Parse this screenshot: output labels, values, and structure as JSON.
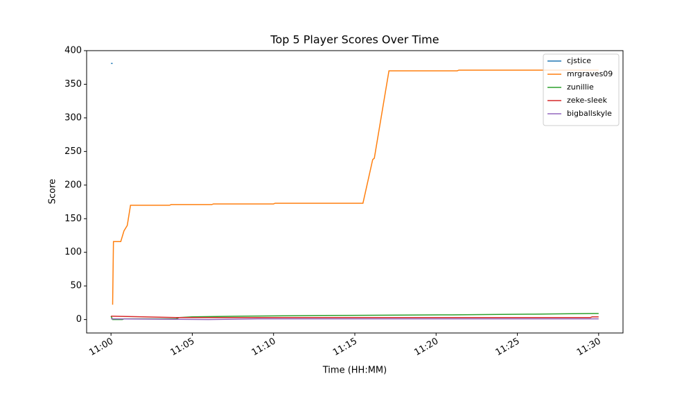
{
  "chart_data": {
    "type": "line",
    "title": "Top 5 Player Scores Over Time",
    "xlabel": "Time (HH:MM)",
    "ylabel": "Score",
    "xlim": [
      "10:58:30",
      "11:31:30"
    ],
    "xticks": [
      "11:00",
      "11:05",
      "11:10",
      "11:15",
      "11:20",
      "11:25",
      "11:30"
    ],
    "ylim": [
      -20,
      400
    ],
    "yticks": [
      0,
      50,
      100,
      150,
      200,
      250,
      300,
      350,
      400
    ],
    "legend": "upper right",
    "series": [
      {
        "name": "cjstice",
        "color": "#1f77b4",
        "x": [
          "11:00:00",
          "11:00:06"
        ],
        "values": [
          381,
          381
        ]
      },
      {
        "name": "mrgraves09",
        "color": "#ff7f0e",
        "x": [
          "11:00:06",
          "11:00:09",
          "11:00:36",
          "11:00:48",
          "11:01:00",
          "11:01:12",
          "11:03:36",
          "11:03:42",
          "11:06:12",
          "11:06:18",
          "11:10:00",
          "11:10:06",
          "11:15:30",
          "11:16:06",
          "11:16:12",
          "11:17:06",
          "11:21:18",
          "11:21:24",
          "11:30:00"
        ],
        "values": [
          22,
          116,
          116,
          132,
          140,
          170,
          170,
          171,
          171,
          172,
          172,
          173,
          173,
          238,
          240,
          370,
          370,
          371,
          371
        ]
      },
      {
        "name": "zunillie",
        "color": "#2ca02c",
        "x": [
          "11:00:00",
          "11:00:06",
          "11:00:42",
          "11:00:48",
          "11:04:00",
          "11:04:12",
          "11:05:00",
          "11:08:00",
          "11:13:00",
          "11:21:00",
          "11:26:00",
          "11:29:42",
          "11:30:00"
        ],
        "values": [
          5,
          0,
          0,
          1,
          1,
          3,
          4,
          5,
          6,
          7,
          8,
          9,
          9
        ]
      },
      {
        "name": "zeke-sleek",
        "color": "#d62728",
        "x": [
          "11:00:00",
          "11:04:00",
          "11:15:00",
          "11:29:30",
          "11:29:36",
          "11:30:00"
        ],
        "values": [
          5,
          3,
          3,
          3,
          4,
          4
        ]
      },
      {
        "name": "bigballskyle",
        "color": "#9467bd",
        "x": [
          "11:00:00",
          "11:06:00",
          "11:09:00",
          "11:30:00"
        ],
        "values": [
          1,
          0,
          1,
          1
        ]
      }
    ]
  }
}
